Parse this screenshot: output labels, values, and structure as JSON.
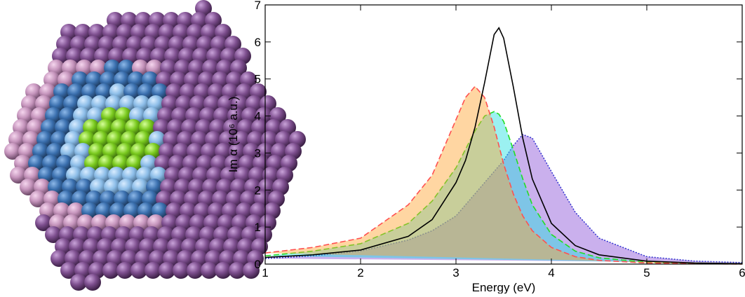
{
  "chart_data": {
    "type": "line",
    "xlabel": "Energy (eV)",
    "ylabel": "Im α (10⁶ a.u.)",
    "xlim": [
      1,
      6
    ],
    "ylim": [
      0,
      7
    ],
    "xticks": [
      1,
      2,
      3,
      4,
      5,
      6
    ],
    "yticks": [
      0,
      1,
      2,
      3,
      4,
      5,
      6,
      7
    ],
    "x": [
      1,
      1.5,
      2,
      2.5,
      2.75,
      3,
      3.1,
      3.2,
      3.3,
      3.4,
      3.45,
      3.5,
      3.6,
      3.7,
      3.8,
      4,
      4.25,
      4.5,
      5,
      5.5,
      6
    ],
    "series": [
      {
        "color": "#3a3ad0",
        "fill": "#8a4fd6",
        "dash": "dotted",
        "values": [
          0.15,
          0.22,
          0.35,
          0.65,
          0.9,
          1.3,
          1.6,
          1.9,
          2.2,
          2.5,
          2.65,
          2.8,
          3.2,
          3.5,
          3.4,
          2.5,
          1.4,
          0.7,
          0.2,
          0.08,
          0.04
        ]
      },
      {
        "color": "#22dd22",
        "fill": "#22e0e0",
        "dash": "dashed",
        "values": [
          0.22,
          0.35,
          0.55,
          1.1,
          1.7,
          2.6,
          3.1,
          3.6,
          4.0,
          4.12,
          4.05,
          3.85,
          3.1,
          2.3,
          1.6,
          0.8,
          0.35,
          0.17,
          0.05,
          0.02,
          0.01
        ]
      },
      {
        "color": "#ff5050",
        "fill": "#ffa530",
        "dash": "dashed",
        "values": [
          0.3,
          0.45,
          0.7,
          1.6,
          2.4,
          3.9,
          4.5,
          4.8,
          4.5,
          3.7,
          3.2,
          2.7,
          1.9,
          1.3,
          0.9,
          0.45,
          0.2,
          0.1,
          0.03,
          0.01,
          0
        ]
      },
      {
        "color": "#000000",
        "fill": "none",
        "dash": "solid",
        "values": [
          0.18,
          0.25,
          0.38,
          0.75,
          1.2,
          2.2,
          2.8,
          3.7,
          4.9,
          6.2,
          6.38,
          6.1,
          4.8,
          3.4,
          2.3,
          1.1,
          0.5,
          0.25,
          0.08,
          0.03,
          0.01
        ]
      }
    ]
  }
}
